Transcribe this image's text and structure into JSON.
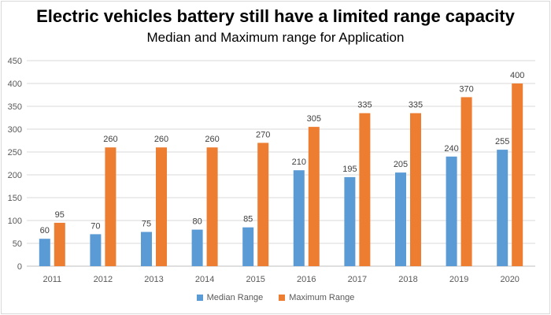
{
  "colors": {
    "median": "#5b9bd5",
    "maximum": "#ed7d31",
    "grid": "#d9d9d9",
    "axis": "#bfbfbf"
  },
  "chart_data": {
    "type": "bar",
    "title": "Electric vehicles battery still have a limited range capacity",
    "subtitle": "Median and Maximum range for Application",
    "categories": [
      "2011",
      "2012",
      "2013",
      "2014",
      "2015",
      "2016",
      "2017",
      "2018",
      "2019",
      "2020"
    ],
    "series": [
      {
        "name": "Median Range",
        "values": [
          60,
          70,
          75,
          80,
          85,
          210,
          195,
          205,
          240,
          255
        ]
      },
      {
        "name": "Maximum Range",
        "values": [
          95,
          260,
          260,
          260,
          270,
          305,
          335,
          335,
          370,
          400
        ]
      }
    ],
    "ylim": [
      0,
      450
    ],
    "yticks": [
      0,
      50,
      100,
      150,
      200,
      250,
      300,
      350,
      400,
      450
    ],
    "grid": true,
    "legend_position": "bottom",
    "data_labels": true
  }
}
